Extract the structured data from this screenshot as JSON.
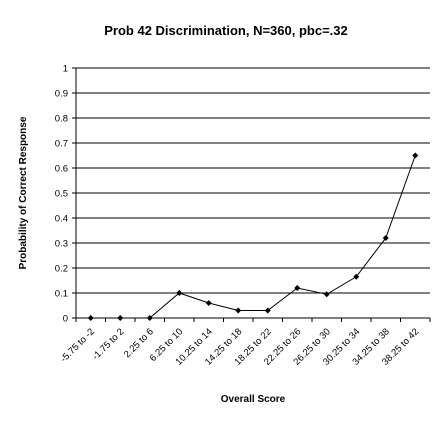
{
  "chart_data": {
    "type": "line",
    "title": "Prob 42 Discrimination, N=360, pbc=.32",
    "xlabel": "Overall Score",
    "ylabel": "Probability of Correct Response",
    "ylim": [
      0,
      1
    ],
    "yticks": [
      "0",
      "0.1",
      "0.2",
      "0.3",
      "0.4",
      "0.5",
      "0.6",
      "0.7",
      "0.8",
      "0.9",
      "1"
    ],
    "grid": "horizontal",
    "categories": [
      "-5.75 to -2",
      "-1.75 to 2",
      "2.25 to 6",
      "6.25 to 10",
      "10.25 to 14",
      "14.25 to 18",
      "18.25 to 22",
      "22.25 to 26",
      "26.25 to 30",
      "30.25 to 34",
      "34.25 to 38",
      "38.25 to 42"
    ],
    "series": [
      {
        "values": [
          0,
          0,
          0,
          0.1,
          0.06,
          0.03,
          0.03,
          0.12,
          0.095,
          0.165,
          0.32,
          0.65
        ],
        "color": "#000000"
      }
    ]
  }
}
